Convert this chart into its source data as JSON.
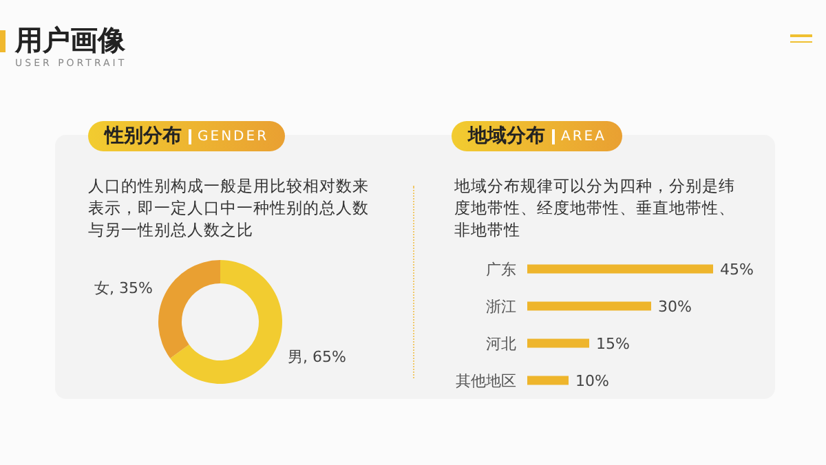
{
  "chart_data": [
    {
      "type": "donut",
      "title": "性别分布",
      "subtitle": "GENDER",
      "annotations": [
        "用户画像",
        "USER PORTRAIT",
        "人口的性别构成一般是用比较相对数来表示，即一定人口中一种性别的总人数与另一性别总人数之比"
      ],
      "categories": [
        "男",
        "女"
      ],
      "values": [
        65,
        35
      ],
      "colors": [
        "#f2cc30",
        "#e9a032"
      ],
      "value_labels": [
        ", 65%",
        ", 35%"
      ],
      "legend": false
    },
    {
      "type": "bar",
      "orientation": "horizontal",
      "title": "地域分布",
      "subtitle": "AREA",
      "annotations": [
        "地域分布规律可以分为四种，分别是纬度地带性、经度地带性、垂直地带性、非地带性"
      ],
      "categories": [
        "广东",
        "浙江",
        "河北",
        "其他地区"
      ],
      "values": [
        45,
        30,
        15,
        10
      ],
      "color": "#eeb52c",
      "value_labels": [
        "45%",
        "30%",
        "15%",
        "10%"
      ],
      "legend": false
    }
  ]
}
